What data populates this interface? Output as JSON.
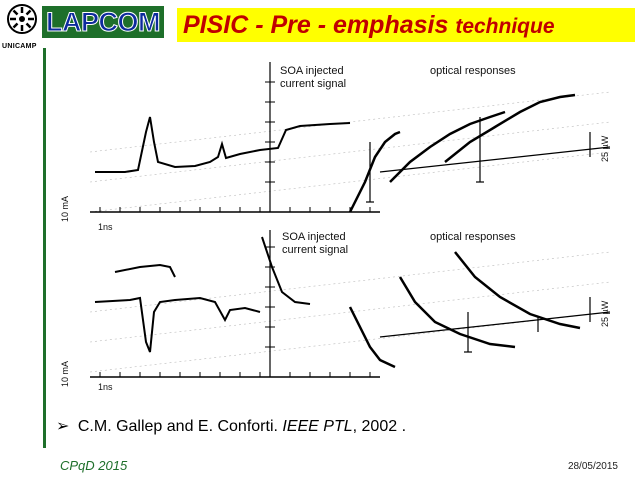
{
  "header": {
    "unicamp_logo_text": "UNICAMP",
    "lapcom_logo_text": "LAPCOM",
    "title_main": "PISIC - Pre - emphasis",
    "title_suffix": "technique"
  },
  "figure": {
    "top_panel": {
      "label_injected_line1": "SOA injected",
      "label_injected_line2": "current signal",
      "label_optical": "optical responses",
      "scale_current": "10 mA",
      "scale_time": "1ns",
      "scale_power": "25 µW"
    },
    "bottom_panel": {
      "label_injected_line1": "SOA injected",
      "label_injected_line2": "current signal",
      "label_optical": "optical responses",
      "scale_current": "10 mA",
      "scale_time": "1ns",
      "scale_power": "25 µW"
    }
  },
  "reference": {
    "bullet": "➢",
    "authors": "C.M. Gallep and E. Conforti. ",
    "journal": "IEEE PTL",
    "year": ", 2002 ."
  },
  "footer": {
    "event": "CPqD 2015",
    "date": "28/05/2015"
  },
  "colors": {
    "title_text": "#c00000",
    "title_bg": "#ffff00",
    "brand_green": "#1e6f2a",
    "lapcom_blue": "#0c2a9c"
  }
}
